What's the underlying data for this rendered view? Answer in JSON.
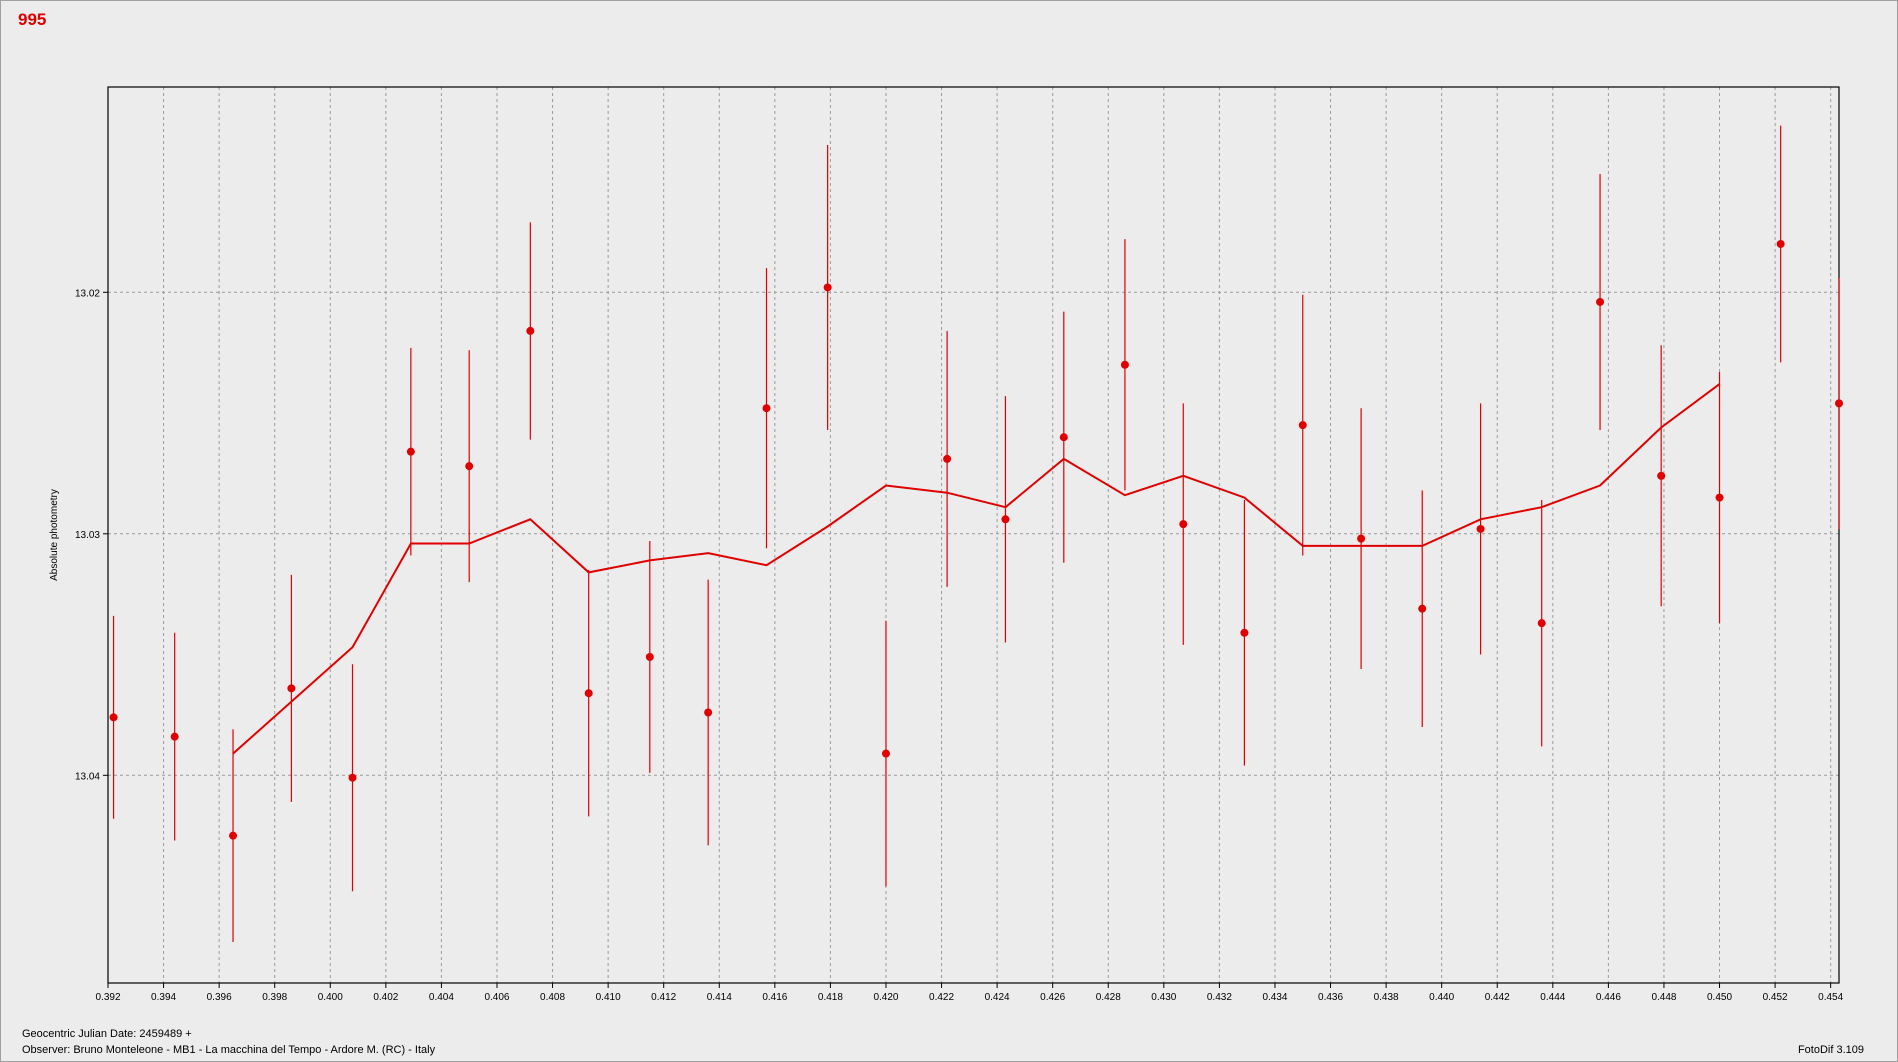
{
  "header": {
    "plot_id": "995"
  },
  "footer": {
    "jd_label": "Geocentric Julian Date: 2459489 +",
    "observer": "Observer: Bruno Monteleone - MB1 - La macchina del Tempo - Ardore M. (RC) - Italy",
    "software": "FotoDif 3.109"
  },
  "colors": {
    "series": "#e00000",
    "grid": "#9a9a9a",
    "background": "#ececec"
  },
  "chart_data": {
    "type": "scatter",
    "ylabel": "Absolute photometry",
    "xlim": [
      0.392,
      0.4543
    ],
    "ylim": [
      13.0486,
      13.0115
    ],
    "y_inverted": true,
    "grid": true,
    "xticks": [
      "0.392",
      "0.394",
      "0.396",
      "0.398",
      "0.400",
      "0.402",
      "0.404",
      "0.406",
      "0.408",
      "0.410",
      "0.412",
      "0.414",
      "0.416",
      "0.418",
      "0.420",
      "0.422",
      "0.424",
      "0.426",
      "0.428",
      "0.430",
      "0.432",
      "0.434",
      "0.436",
      "0.438",
      "0.440",
      "0.442",
      "0.444",
      "0.446",
      "0.448",
      "0.450",
      "0.452",
      "0.454"
    ],
    "yticks": [
      "13.02",
      "13.03",
      "13.04"
    ],
    "yticks_values": [
      13.02,
      13.03,
      13.04
    ],
    "series": [
      {
        "kind": "points-with-errorbars",
        "points": [
          {
            "x": 0.3922,
            "y": 13.0376,
            "err": 0.0042
          },
          {
            "x": 0.3944,
            "y": 13.0384,
            "err": 0.0043
          },
          {
            "x": 0.3965,
            "y": 13.0425,
            "err": 0.0044
          },
          {
            "x": 0.3986,
            "y": 13.0364,
            "err": 0.0047
          },
          {
            "x": 0.4008,
            "y": 13.0401,
            "err": 0.0047
          },
          {
            "x": 0.4029,
            "y": 13.0266,
            "err": 0.0043
          },
          {
            "x": 0.405,
            "y": 13.0272,
            "err": 0.0048
          },
          {
            "x": 0.4072,
            "y": 13.0216,
            "err": 0.0045
          },
          {
            "x": 0.4093,
            "y": 13.0366,
            "err": 0.0051
          },
          {
            "x": 0.4115,
            "y": 13.0351,
            "err": 0.0048
          },
          {
            "x": 0.4136,
            "y": 13.0374,
            "err": 0.0055
          },
          {
            "x": 0.4157,
            "y": 13.0248,
            "err": 0.0058
          },
          {
            "x": 0.4179,
            "y": 13.0198,
            "err": 0.0059
          },
          {
            "x": 0.42,
            "y": 13.0391,
            "err": 0.0055
          },
          {
            "x": 0.4222,
            "y": 13.0269,
            "err": 0.0053
          },
          {
            "x": 0.4243,
            "y": 13.0294,
            "err": 0.0051
          },
          {
            "x": 0.4264,
            "y": 13.026,
            "err": 0.0052
          },
          {
            "x": 0.4286,
            "y": 13.023,
            "err": 0.0052
          },
          {
            "x": 0.4307,
            "y": 13.0296,
            "err": 0.005
          },
          {
            "x": 0.4329,
            "y": 13.0341,
            "err": 0.0055
          },
          {
            "x": 0.435,
            "y": 13.0255,
            "err": 0.0054
          },
          {
            "x": 0.4371,
            "y": 13.0302,
            "err": 0.0054
          },
          {
            "x": 0.4393,
            "y": 13.0331,
            "err": 0.0049
          },
          {
            "x": 0.4414,
            "y": 13.0298,
            "err": 0.0052
          },
          {
            "x": 0.4436,
            "y": 13.0337,
            "err": 0.0051
          },
          {
            "x": 0.4457,
            "y": 13.0204,
            "err": 0.0053
          },
          {
            "x": 0.4479,
            "y": 13.0276,
            "err": 0.0054
          },
          {
            "x": 0.45,
            "y": 13.0285,
            "err": 0.0052
          },
          {
            "x": 0.4522,
            "y": 13.018,
            "err": 0.0049
          },
          {
            "x": 0.4543,
            "y": 13.0246,
            "err": 0.0052
          }
        ]
      },
      {
        "kind": "line",
        "points": [
          {
            "x": 0.3965,
            "y": 13.0391
          },
          {
            "x": 0.4008,
            "y": 13.0347
          },
          {
            "x": 0.4029,
            "y": 13.0304
          },
          {
            "x": 0.405,
            "y": 13.0304
          },
          {
            "x": 0.4072,
            "y": 13.0294
          },
          {
            "x": 0.4093,
            "y": 13.0316
          },
          {
            "x": 0.4115,
            "y": 13.0311
          },
          {
            "x": 0.4136,
            "y": 13.0308
          },
          {
            "x": 0.4157,
            "y": 13.0313
          },
          {
            "x": 0.4179,
            "y": 13.0297
          },
          {
            "x": 0.42,
            "y": 13.028
          },
          {
            "x": 0.4222,
            "y": 13.0283
          },
          {
            "x": 0.4243,
            "y": 13.0289
          },
          {
            "x": 0.4264,
            "y": 13.0269
          },
          {
            "x": 0.4286,
            "y": 13.0284
          },
          {
            "x": 0.4307,
            "y": 13.0276
          },
          {
            "x": 0.4329,
            "y": 13.0285
          },
          {
            "x": 0.435,
            "y": 13.0305
          },
          {
            "x": 0.4371,
            "y": 13.0305
          },
          {
            "x": 0.4393,
            "y": 13.0305
          },
          {
            "x": 0.4414,
            "y": 13.0294
          },
          {
            "x": 0.4436,
            "y": 13.0289
          },
          {
            "x": 0.4457,
            "y": 13.028
          },
          {
            "x": 0.4479,
            "y": 13.0256
          },
          {
            "x": 0.45,
            "y": 13.0238
          }
        ]
      }
    ]
  }
}
